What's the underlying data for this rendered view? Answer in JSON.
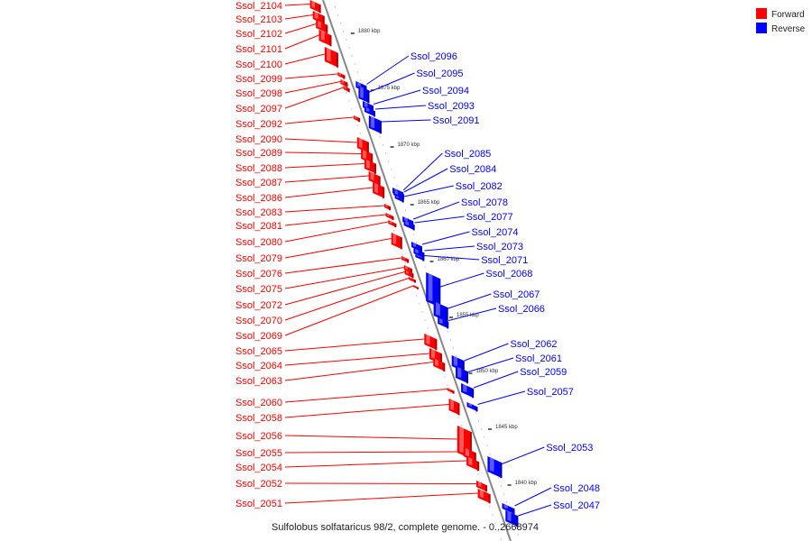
{
  "map": {
    "caption": "Sulfolobus solfataricus 98/2, complete genome. - 0..2668974",
    "legend": [
      {
        "label": "Forward",
        "color": "#ff0000"
      },
      {
        "label": "Reverse",
        "color": "#0000ff"
      }
    ],
    "colors": {
      "forward": "#ff0000",
      "reverse": "#0000ff",
      "backbone": "#888888"
    },
    "position_ticks_kbp": [
      1880,
      1875,
      1870,
      1865,
      1860,
      1855,
      1850,
      1845,
      1840
    ],
    "tick_labels": [
      "1880 kbp",
      "1875 kbp",
      "1870 kbp",
      "1865 kbp",
      "1860 kbp",
      "1855 kbp",
      "1850 kbp",
      "1845 kbp",
      "1840 kbp"
    ],
    "forward_genes": [
      "Ssol_2104",
      "Ssol_2103",
      "Ssol_2102",
      "Ssol_2101",
      "Ssol_2100",
      "Ssol_2099",
      "Ssol_2098",
      "Ssol_2097",
      "Ssol_2092",
      "Ssol_2090",
      "Ssol_2089",
      "Ssol_2088",
      "Ssol_2087",
      "Ssol_2086",
      "Ssol_2083",
      "Ssol_2081",
      "Ssol_2080",
      "Ssol_2079",
      "Ssol_2076",
      "Ssol_2075",
      "Ssol_2072",
      "Ssol_2070",
      "Ssol_2069",
      "Ssol_2065",
      "Ssol_2064",
      "Ssol_2063",
      "Ssol_2060",
      "Ssol_2058",
      "Ssol_2056",
      "Ssol_2055",
      "Ssol_2054",
      "Ssol_2052",
      "Ssol_2051"
    ],
    "reverse_genes": [
      "Ssol_2096",
      "Ssol_2095",
      "Ssol_2094",
      "Ssol_2093",
      "Ssol_2091",
      "Ssol_2085",
      "Ssol_2084",
      "Ssol_2082",
      "Ssol_2078",
      "Ssol_2077",
      "Ssol_2074",
      "Ssol_2073",
      "Ssol_2071",
      "Ssol_2068",
      "Ssol_2067",
      "Ssol_2066",
      "Ssol_2062",
      "Ssol_2061",
      "Ssol_2059",
      "Ssol_2057",
      "Ssol_2053",
      "Ssol_2048",
      "Ssol_2047"
    ]
  }
}
